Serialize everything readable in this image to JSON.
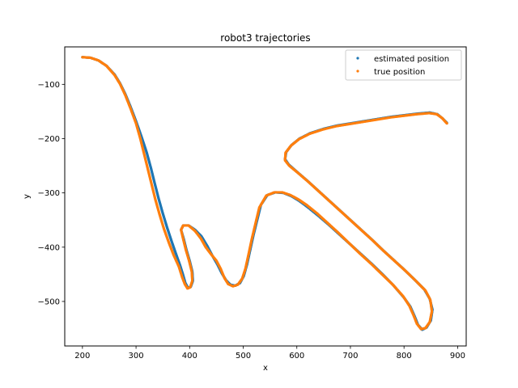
{
  "chart_data": {
    "type": "scatter",
    "title": "robot3 trajectories",
    "xlabel": "x",
    "ylabel": "y",
    "xlim": [
      167,
      916
    ],
    "ylim": [
      -582,
      -31
    ],
    "xticks": [
      200,
      300,
      400,
      500,
      600,
      700,
      800,
      900
    ],
    "yticks": [
      -100,
      -200,
      -300,
      -400,
      -500
    ],
    "xtick_labels": [
      "200",
      "300",
      "400",
      "500",
      "600",
      "700",
      "800",
      "900"
    ],
    "ytick_labels": [
      "−100",
      "−200",
      "−300",
      "−400",
      "−500"
    ],
    "grid": false,
    "legend_position": "upper right",
    "series": [
      {
        "name": "estimated position",
        "color": "#1f77b4",
        "points": [
          [
            200,
            -50
          ],
          [
            215,
            -51
          ],
          [
            230,
            -56
          ],
          [
            245,
            -66
          ],
          [
            260,
            -82
          ],
          [
            270,
            -98
          ],
          [
            280,
            -118
          ],
          [
            290,
            -142
          ],
          [
            300,
            -168
          ],
          [
            310,
            -196
          ],
          [
            320,
            -226
          ],
          [
            328,
            -255
          ],
          [
            335,
            -283
          ],
          [
            342,
            -310
          ],
          [
            350,
            -338
          ],
          [
            358,
            -364
          ],
          [
            366,
            -388
          ],
          [
            374,
            -411
          ],
          [
            382,
            -433
          ],
          [
            388,
            -452
          ],
          [
            392,
            -466
          ],
          [
            397,
            -475
          ],
          [
            402,
            -473
          ],
          [
            406,
            -462
          ],
          [
            405,
            -445
          ],
          [
            400,
            -425
          ],
          [
            394,
            -405
          ],
          [
            389,
            -385
          ],
          [
            384,
            -368
          ],
          [
            388,
            -360
          ],
          [
            398,
            -360
          ],
          [
            410,
            -368
          ],
          [
            422,
            -380
          ],
          [
            433,
            -398
          ],
          [
            442,
            -415
          ],
          [
            452,
            -432
          ],
          [
            460,
            -448
          ],
          [
            468,
            -461
          ],
          [
            476,
            -469
          ],
          [
            485,
            -471
          ],
          [
            494,
            -466
          ],
          [
            501,
            -453
          ],
          [
            507,
            -432
          ],
          [
            513,
            -405
          ],
          [
            519,
            -378
          ],
          [
            526,
            -350
          ],
          [
            533,
            -322
          ],
          [
            545,
            -304
          ],
          [
            560,
            -299
          ],
          [
            575,
            -300
          ],
          [
            590,
            -306
          ],
          [
            605,
            -315
          ],
          [
            620,
            -326
          ],
          [
            640,
            -342
          ],
          [
            660,
            -359
          ],
          [
            680,
            -377
          ],
          [
            700,
            -395
          ],
          [
            720,
            -413
          ],
          [
            740,
            -431
          ],
          [
            760,
            -450
          ],
          [
            780,
            -470
          ],
          [
            800,
            -493
          ],
          [
            812,
            -510
          ],
          [
            820,
            -528
          ],
          [
            826,
            -543
          ],
          [
            834,
            -552
          ],
          [
            842,
            -548
          ],
          [
            850,
            -535
          ],
          [
            853,
            -515
          ],
          [
            848,
            -495
          ],
          [
            838,
            -478
          ],
          [
            820,
            -460
          ],
          [
            800,
            -441
          ],
          [
            780,
            -423
          ],
          [
            760,
            -405
          ],
          [
            740,
            -386
          ],
          [
            720,
            -368
          ],
          [
            700,
            -350
          ],
          [
            680,
            -332
          ],
          [
            660,
            -314
          ],
          [
            640,
            -296
          ],
          [
            620,
            -278
          ],
          [
            600,
            -261
          ],
          [
            585,
            -248
          ],
          [
            578,
            -238
          ],
          [
            580,
            -225
          ],
          [
            590,
            -212
          ],
          [
            605,
            -200
          ],
          [
            625,
            -190
          ],
          [
            650,
            -182
          ],
          [
            675,
            -176
          ],
          [
            700,
            -172
          ],
          [
            725,
            -168
          ],
          [
            750,
            -164
          ],
          [
            775,
            -160
          ],
          [
            800,
            -157
          ],
          [
            825,
            -154
          ],
          [
            848,
            -152
          ],
          [
            862,
            -155
          ],
          [
            872,
            -163
          ],
          [
            880,
            -171
          ]
        ]
      },
      {
        "name": "true position",
        "color": "#ff7f0e",
        "points": [
          [
            200,
            -50
          ],
          [
            215,
            -51
          ],
          [
            230,
            -56
          ],
          [
            245,
            -66
          ],
          [
            260,
            -83
          ],
          [
            270,
            -99
          ],
          [
            280,
            -120
          ],
          [
            290,
            -145
          ],
          [
            300,
            -172
          ],
          [
            308,
            -200
          ],
          [
            315,
            -228
          ],
          [
            322,
            -256
          ],
          [
            329,
            -284
          ],
          [
            336,
            -312
          ],
          [
            344,
            -340
          ],
          [
            352,
            -366
          ],
          [
            361,
            -391
          ],
          [
            370,
            -414
          ],
          [
            380,
            -436
          ],
          [
            386,
            -455
          ],
          [
            391,
            -468
          ],
          [
            396,
            -476
          ],
          [
            401,
            -474
          ],
          [
            405,
            -462
          ],
          [
            404,
            -445
          ],
          [
            399,
            -425
          ],
          [
            393,
            -405
          ],
          [
            388,
            -385
          ],
          [
            384,
            -368
          ],
          [
            388,
            -360
          ],
          [
            398,
            -360
          ],
          [
            410,
            -370
          ],
          [
            421,
            -384
          ],
          [
            430,
            -400
          ],
          [
            440,
            -413
          ],
          [
            450,
            -425
          ],
          [
            458,
            -440
          ],
          [
            465,
            -457
          ],
          [
            472,
            -468
          ],
          [
            481,
            -472
          ],
          [
            490,
            -469
          ],
          [
            498,
            -458
          ],
          [
            504,
            -440
          ],
          [
            510,
            -413
          ],
          [
            516,
            -385
          ],
          [
            523,
            -356
          ],
          [
            530,
            -327
          ],
          [
            543,
            -305
          ],
          [
            558,
            -299
          ],
          [
            573,
            -299
          ],
          [
            588,
            -304
          ],
          [
            603,
            -312
          ],
          [
            618,
            -322
          ],
          [
            638,
            -338
          ],
          [
            658,
            -356
          ],
          [
            678,
            -374
          ],
          [
            698,
            -393
          ],
          [
            718,
            -412
          ],
          [
            738,
            -430
          ],
          [
            758,
            -449
          ],
          [
            778,
            -468
          ],
          [
            798,
            -490
          ],
          [
            810,
            -508
          ],
          [
            818,
            -526
          ],
          [
            824,
            -541
          ],
          [
            832,
            -551
          ],
          [
            840,
            -549
          ],
          [
            848,
            -538
          ],
          [
            852,
            -518
          ],
          [
            849,
            -497
          ],
          [
            840,
            -480
          ],
          [
            822,
            -462
          ],
          [
            802,
            -443
          ],
          [
            782,
            -425
          ],
          [
            762,
            -407
          ],
          [
            742,
            -388
          ],
          [
            722,
            -370
          ],
          [
            702,
            -352
          ],
          [
            682,
            -334
          ],
          [
            662,
            -316
          ],
          [
            642,
            -298
          ],
          [
            622,
            -280
          ],
          [
            602,
            -263
          ],
          [
            586,
            -250
          ],
          [
            578,
            -240
          ],
          [
            579,
            -226
          ],
          [
            589,
            -213
          ],
          [
            604,
            -201
          ],
          [
            624,
            -191
          ],
          [
            649,
            -183
          ],
          [
            674,
            -177
          ],
          [
            699,
            -173
          ],
          [
            724,
            -169
          ],
          [
            749,
            -165
          ],
          [
            774,
            -161
          ],
          [
            799,
            -158
          ],
          [
            824,
            -155
          ],
          [
            847,
            -153
          ],
          [
            861,
            -155
          ],
          [
            871,
            -162
          ],
          [
            880,
            -172
          ]
        ]
      }
    ]
  }
}
